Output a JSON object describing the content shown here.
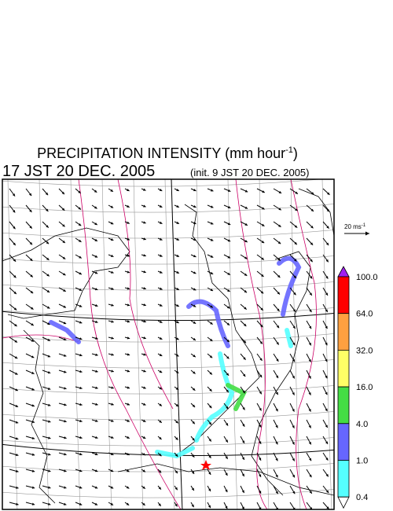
{
  "title": {
    "text": "PRECIPITATION INTENSITY (mm hour",
    "superscript": "-1",
    "close": ")"
  },
  "valid_time": "17 JST 20 DEC. 2005",
  "init_time": "(init. 9 JST 20 DEC. 2005)",
  "scale_vector": {
    "label": "20 ms",
    "superscript": "-1"
  },
  "colorbar": {
    "over_color": "#a020f0",
    "under_color": "#ffffff",
    "bands": [
      {
        "color": "#ff0000"
      },
      {
        "color": "#ffa040"
      },
      {
        "color": "#ffff66"
      },
      {
        "color": "#44dd44"
      },
      {
        "color": "#6666ff"
      },
      {
        "color": "#55ffff"
      }
    ],
    "labels": [
      "100.0",
      "64.0",
      "32.0",
      "16.0",
      "4.0",
      "1.0",
      "0.4"
    ]
  }
}
